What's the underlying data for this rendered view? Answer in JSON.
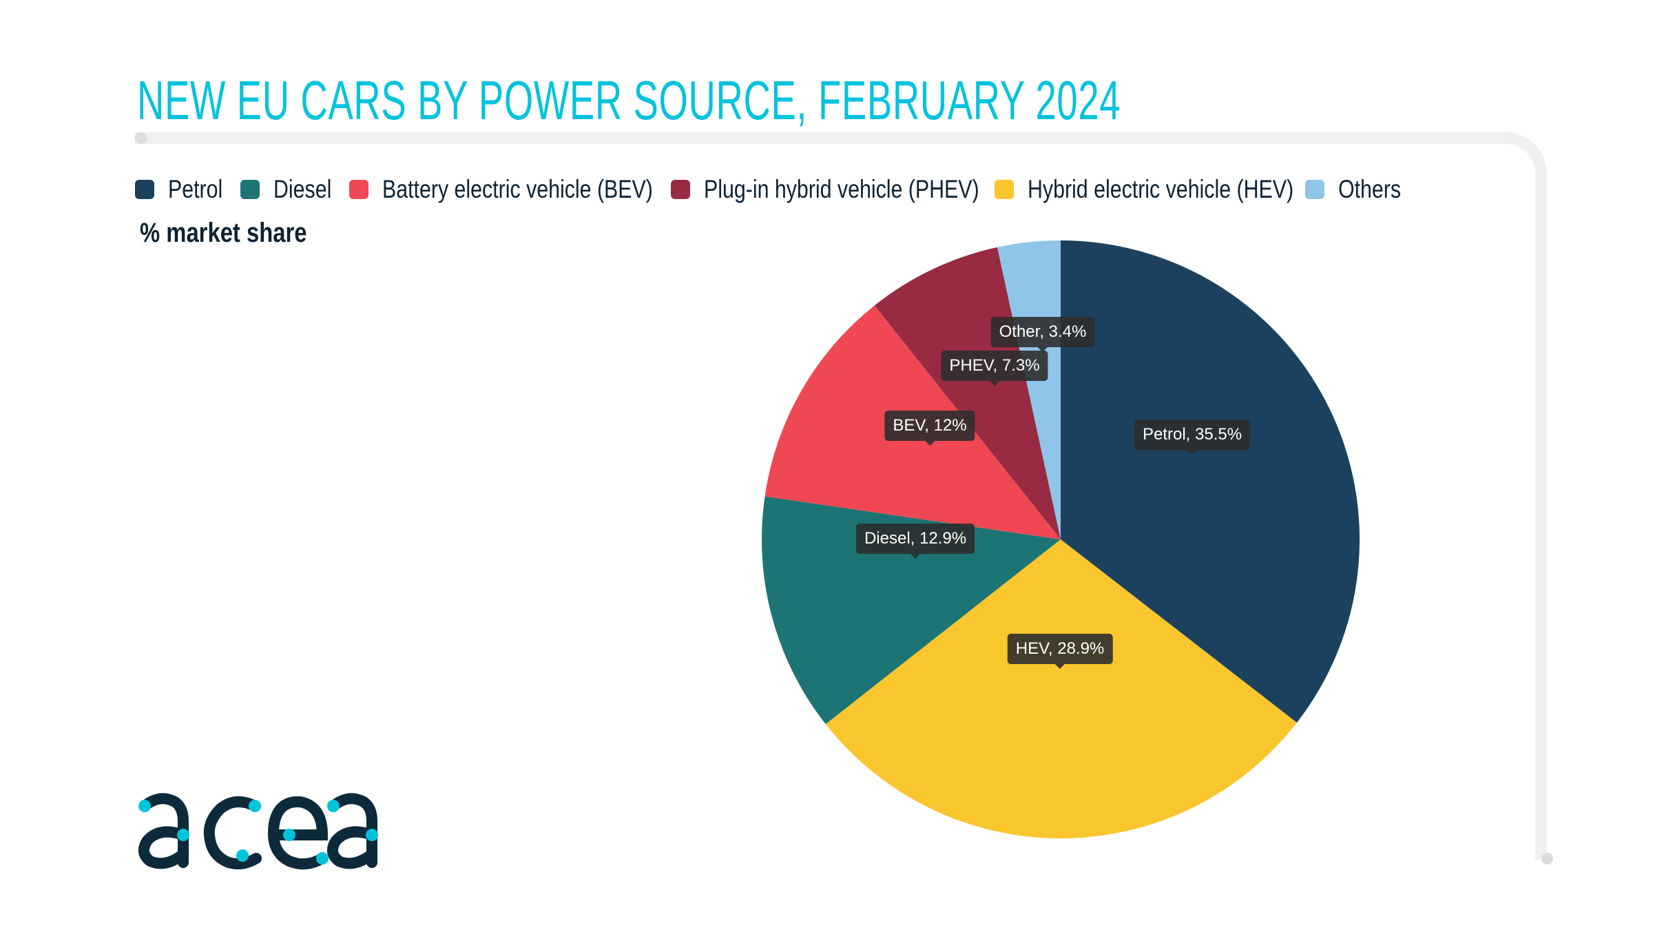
{
  "title": "NEW EU CARS BY POWER SOURCE, FEBRUARY 2024",
  "subtitle": "% market share",
  "legend": [
    {
      "label": "Petrol",
      "color": "#1c415e"
    },
    {
      "label": "Diesel",
      "color": "#1c7574"
    },
    {
      "label": "Battery electric vehicle (BEV)",
      "color": "#ef4854"
    },
    {
      "label": "Plug-in hybrid vehicle (PHEV)",
      "color": "#982b42"
    },
    {
      "label": "Hybrid electric vehicle (HEV)",
      "color": "#f9c62e"
    },
    {
      "label": "Others",
      "color": "#8fc5e8"
    }
  ],
  "logo": {
    "text": "acea",
    "color": "#0d2a3a",
    "accent": "#00c3dc"
  },
  "chart_data": {
    "type": "pie",
    "title": "NEW EU CARS BY POWER SOURCE, FEBRUARY 2024",
    "subtitle": "% market share",
    "legend_position": "top-left",
    "slices": [
      {
        "name": "Petrol",
        "value": 35.5,
        "label": "Petrol, 35.5%",
        "color": "#1c415e"
      },
      {
        "name": "HEV",
        "value": 28.9,
        "label": "HEV, 28.9%",
        "color": "#f9c62e"
      },
      {
        "name": "Diesel",
        "value": 12.9,
        "label": "Diesel, 12.9%",
        "color": "#1c7574"
      },
      {
        "name": "BEV",
        "value": 12,
        "label": "BEV, 12%",
        "color": "#ef4854"
      },
      {
        "name": "PHEV",
        "value": 7.3,
        "label": "PHEV, 7.3%",
        "color": "#982b42"
      },
      {
        "name": "Other",
        "value": 3.4,
        "label": "Other, 3.4%",
        "color": "#8fc5e8"
      }
    ]
  }
}
